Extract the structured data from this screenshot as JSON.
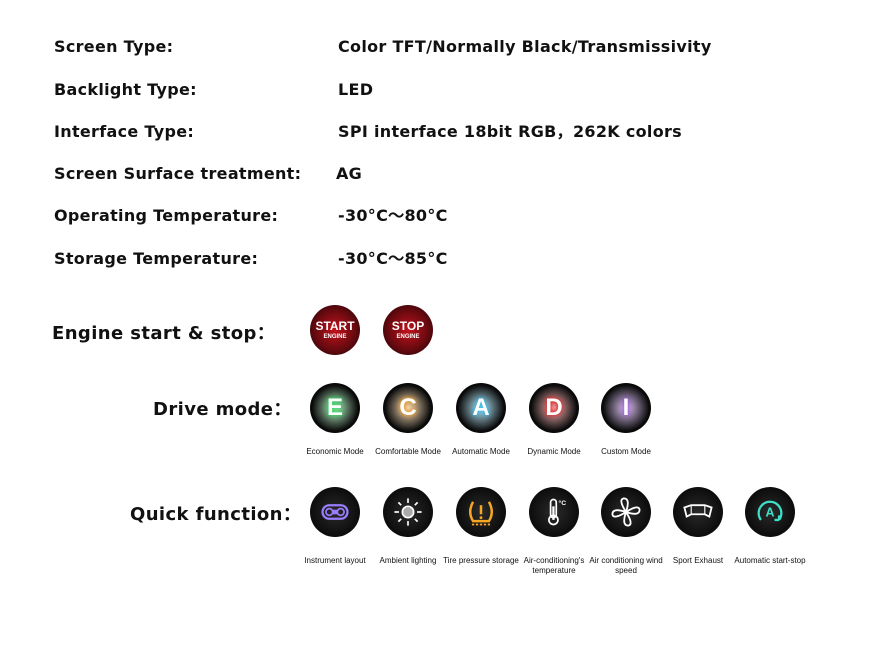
{
  "specs": [
    {
      "label": "Screen Type:",
      "value": "Color TFT/Normally Black/Transmissivity"
    },
    {
      "label": "Backlight Type:",
      "value": "LED"
    },
    {
      "label": "Interface Type:",
      "value": "SPI interface 18bit RGB，262K colors"
    },
    {
      "label": "Screen Surface treatment:",
      "value": "AG"
    },
    {
      "label": "Operating Temperature:",
      "value": "-30°C～80°C"
    },
    {
      "label": "Storage Temperature:",
      "value": "-30°C～85°C"
    }
  ],
  "engine": {
    "label": "Engine start & stop：",
    "buttons": [
      {
        "main": "START",
        "sub": "ENGINE"
      },
      {
        "main": "STOP",
        "sub": "ENGINE"
      }
    ],
    "glow": "#c3121c"
  },
  "drive": {
    "label": "Drive mode：",
    "modes": [
      {
        "letter": "E",
        "caption": "Economic Mode",
        "color": "#2fd25a"
      },
      {
        "letter": "C",
        "caption": "Comfortable Mode",
        "color": "#f0a030"
      },
      {
        "letter": "A",
        "caption": "Automatic Mode",
        "color": "#30b8e8"
      },
      {
        "letter": "D",
        "caption": "Dynamic Mode",
        "color": "#e82828"
      },
      {
        "letter": "I",
        "caption": "Custom Mode",
        "color": "#9a4ce0"
      }
    ]
  },
  "quick": {
    "label": "Quick function：",
    "items": [
      {
        "icon": "instrument-layout-icon",
        "caption": "Instrument layout",
        "color": "#9a7cff"
      },
      {
        "icon": "ambient-light-icon",
        "caption": "Ambient lighting",
        "color": "#ffffff"
      },
      {
        "icon": "tire-pressure-icon",
        "caption": "Tire pressure storage",
        "color": "#f5a623"
      },
      {
        "icon": "thermometer-icon",
        "caption": "Air-conditioning's temperature",
        "color": "#ffffff"
      },
      {
        "icon": "fan-icon",
        "caption": "Air conditioning wind speed",
        "color": "#ffffff"
      },
      {
        "icon": "exhaust-icon",
        "caption": "Sport Exhaust",
        "color": "#ffffff"
      },
      {
        "icon": "auto-start-stop-icon",
        "caption": "Automatic start-stop",
        "color": "#3de0c8"
      }
    ]
  }
}
